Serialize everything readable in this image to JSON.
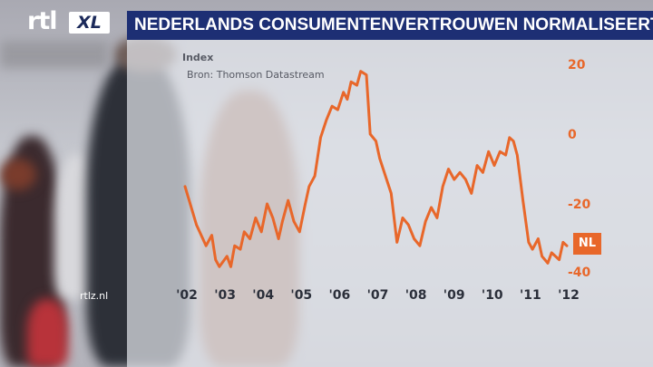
{
  "header": {
    "title": "NEDERLANDS CONSUMENTENVERTROUWEN NORMALISEERT"
  },
  "logo": {
    "rtl_text": "rtl",
    "xl_text": "XL"
  },
  "site_tag": "rtlz.nl",
  "chart_data": {
    "type": "line",
    "ylabel": "Index",
    "source": "Bron: Thomson Datastream",
    "ylim": [
      -40,
      20
    ],
    "y_ticks": [
      "20",
      "0",
      "-20",
      "-40"
    ],
    "x_ticks": [
      "'02",
      "'03",
      "'04",
      "'05",
      "'06",
      "'07",
      "'08",
      "'09",
      "'10",
      "'11",
      "'12"
    ],
    "line_color": "#e8672a",
    "series": [
      {
        "name": "NL",
        "x": [
          2002.0,
          2002.3,
          2002.55,
          2002.7,
          2002.8,
          2002.9,
          2003.1,
          2003.2,
          2003.3,
          2003.45,
          2003.55,
          2003.7,
          2003.85,
          2004.0,
          2004.15,
          2004.3,
          2004.45,
          2004.55,
          2004.7,
          2004.85,
          2005.0,
          2005.15,
          2005.25,
          2005.4,
          2005.55,
          2005.7,
          2005.85,
          2006.0,
          2006.15,
          2006.25,
          2006.35,
          2006.5,
          2006.6,
          2006.75,
          2006.85,
          2007.0,
          2007.1,
          2007.25,
          2007.4,
          2007.55,
          2007.7,
          2007.85,
          2008.0,
          2008.15,
          2008.3,
          2008.45,
          2008.6,
          2008.75,
          2008.9,
          2009.05,
          2009.2,
          2009.35,
          2009.5,
          2009.65,
          2009.8,
          2009.95,
          2010.1,
          2010.25,
          2010.4,
          2010.5,
          2010.6,
          2010.7,
          2010.85,
          2011.0,
          2011.1,
          2011.25,
          2011.35,
          2011.5,
          2011.6,
          2011.8,
          2011.9,
          2012.0
        ],
        "y": [
          -15,
          -26,
          -32,
          -29,
          -36,
          -38,
          -35,
          -38,
          -32,
          -33,
          -28,
          -30,
          -24,
          -28,
          -20,
          -24,
          -30,
          -25,
          -19,
          -25,
          -28,
          -20,
          -15,
          -12,
          -1,
          4,
          8,
          7,
          12,
          10,
          15,
          14,
          18,
          17,
          0,
          -2,
          -7,
          -12,
          -17,
          -31,
          -24,
          -26,
          -30,
          -32,
          -25,
          -21,
          -24,
          -15,
          -10,
          -13,
          -11,
          -13,
          -17,
          -9,
          -11,
          -5,
          -9,
          -5,
          -6,
          -1,
          -2,
          -6,
          -19,
          -31,
          -33,
          -30,
          -35,
          -37,
          -34,
          -36,
          -31,
          -32
        ]
      }
    ]
  }
}
